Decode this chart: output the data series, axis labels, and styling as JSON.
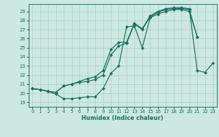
{
  "xlabel": "Humidex (Indice chaleur)",
  "background_color": "#cce8e0",
  "grid_color": "#aacccc",
  "line_color": "#1a7060",
  "xlim": [
    -0.5,
    23.5
  ],
  "ylim": [
    18.5,
    29.8
  ],
  "yticks": [
    19,
    20,
    21,
    22,
    23,
    24,
    25,
    26,
    27,
    28,
    29
  ],
  "xticks": [
    0,
    1,
    2,
    3,
    4,
    5,
    6,
    7,
    8,
    9,
    10,
    11,
    12,
    13,
    14,
    15,
    16,
    17,
    18,
    19,
    20,
    21,
    22,
    23
  ],
  "series1_x": [
    0,
    1,
    2,
    3,
    4,
    5,
    6,
    7,
    8,
    9,
    10,
    11,
    12,
    13,
    14,
    15,
    16,
    17,
    18,
    19,
    20,
    21
  ],
  "series1_y": [
    20.5,
    20.4,
    20.2,
    19.9,
    19.4,
    19.4,
    19.5,
    19.6,
    19.6,
    20.5,
    22.2,
    23.0,
    27.3,
    27.4,
    25.0,
    28.3,
    28.7,
    29.0,
    29.2,
    29.2,
    29.0,
    26.2
  ],
  "series2_x": [
    0,
    1,
    2,
    3,
    4,
    5,
    6,
    7,
    8,
    9,
    10,
    11,
    12,
    13,
    14,
    15,
    16,
    17,
    18,
    19,
    20,
    21
  ],
  "series2_y": [
    20.5,
    20.4,
    20.2,
    20.1,
    20.8,
    21.0,
    21.2,
    21.3,
    21.5,
    22.0,
    24.2,
    25.2,
    25.5,
    27.6,
    27.0,
    28.4,
    28.9,
    29.2,
    29.3,
    29.3,
    29.2,
    26.2
  ],
  "series3_x": [
    0,
    1,
    2,
    3,
    4,
    5,
    6,
    7,
    8,
    9,
    10,
    11,
    12,
    13,
    14,
    15,
    16,
    17,
    18,
    19,
    20,
    21,
    22,
    23
  ],
  "series3_y": [
    20.5,
    20.4,
    20.2,
    20.1,
    20.8,
    21.0,
    21.3,
    21.6,
    21.8,
    22.5,
    24.8,
    25.6,
    25.6,
    27.7,
    27.1,
    28.5,
    29.0,
    29.3,
    29.4,
    29.4,
    29.3,
    22.5,
    22.3,
    23.3
  ]
}
